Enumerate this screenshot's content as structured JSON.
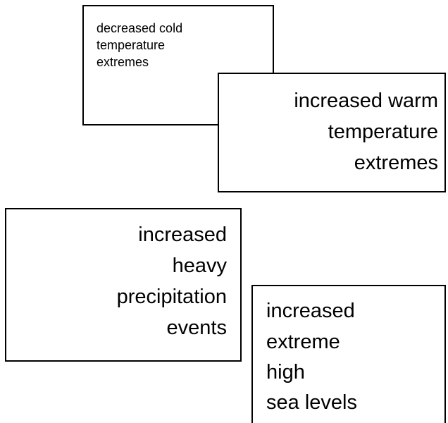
{
  "boxes": [
    {
      "lines": [
        "decreased cold",
        "temperature",
        "extremes"
      ]
    },
    {
      "lines": [
        "increased warm",
        "temperature",
        "extremes"
      ]
    },
    {
      "lines": [
        "increased",
        "heavy",
        "precipitation",
        "events"
      ]
    },
    {
      "lines": [
        "increased",
        "extreme",
        "high",
        "sea levels"
      ]
    }
  ]
}
